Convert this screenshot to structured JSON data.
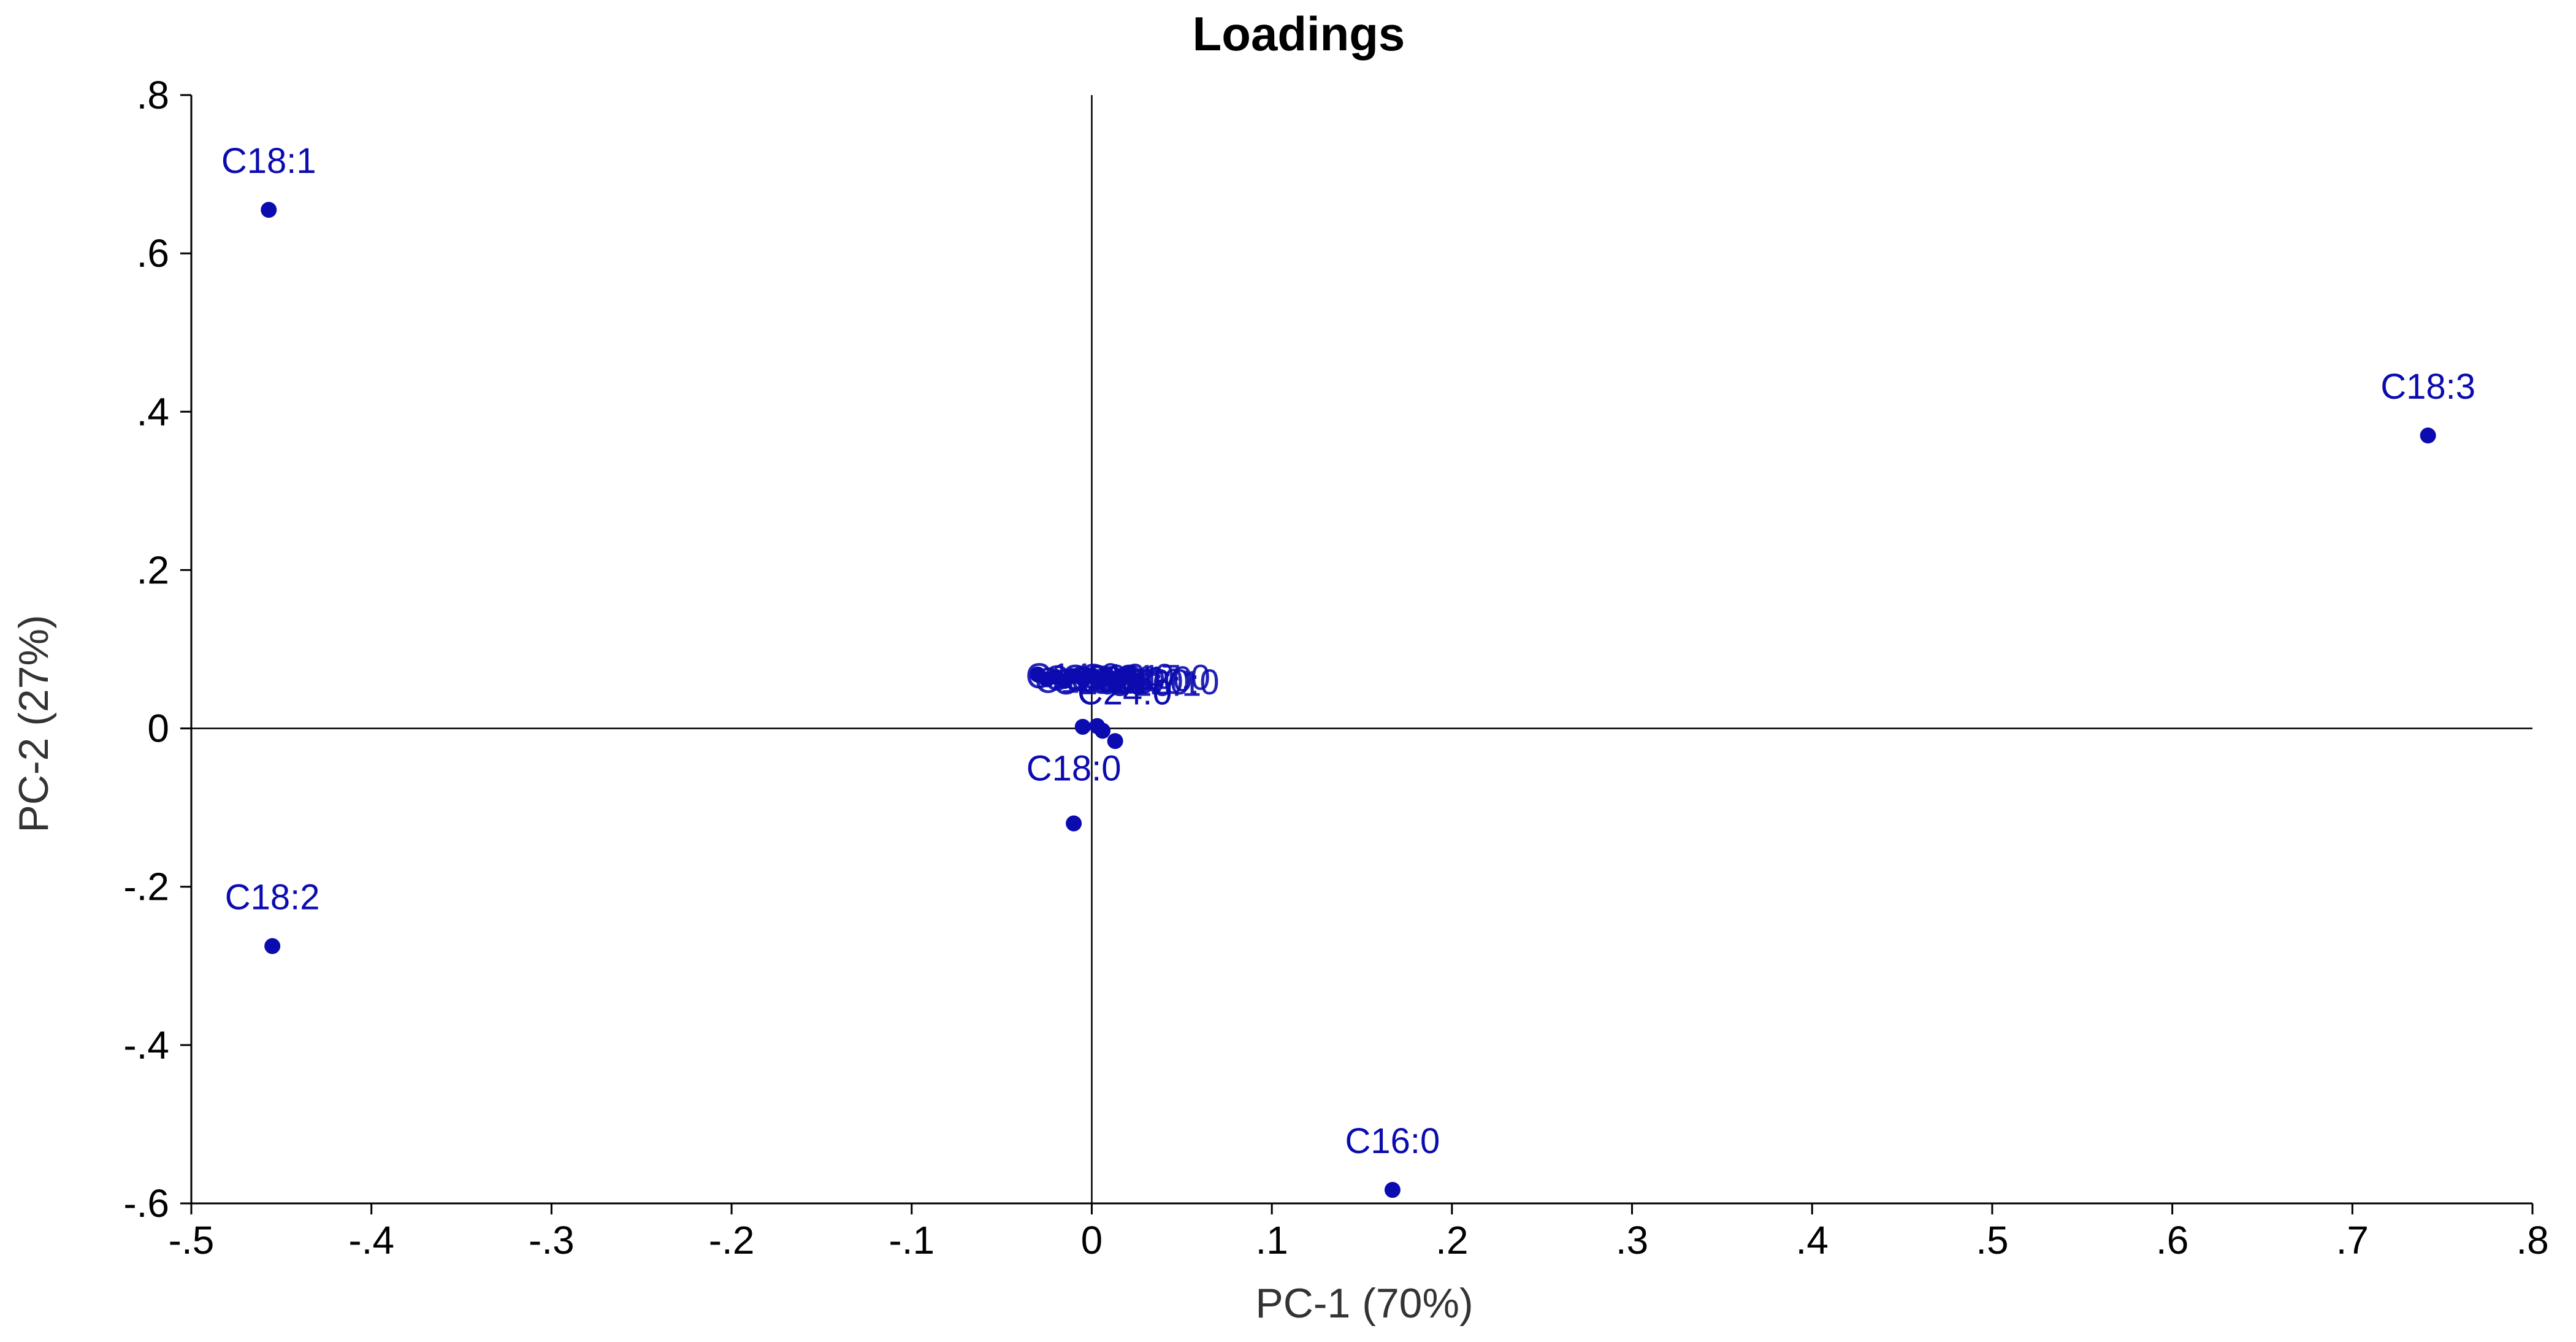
{
  "chart_data": {
    "type": "scatter",
    "title": "Loadings",
    "xlabel": "PC-1 (70%)",
    "ylabel": "PC-2 (27%)",
    "xlim": [
      -0.5,
      0.8
    ],
    "ylim": [
      -0.6,
      0.8
    ],
    "xticks": [
      -0.5,
      -0.4,
      -0.3,
      -0.2,
      -0.1,
      0,
      0.1,
      0.2,
      0.3,
      0.4,
      0.5,
      0.6,
      0.7,
      0.8
    ],
    "yticks": [
      -0.6,
      -0.4,
      -0.2,
      0,
      0.2,
      0.4,
      0.6,
      0.8
    ],
    "reference_lines": {
      "x": 0,
      "y": 0
    },
    "grid": false,
    "color": "#0b0bb0",
    "points": [
      {
        "label": "C18:1",
        "x": -0.457,
        "y": 0.655
      },
      {
        "label": "C18:3",
        "x": 0.742,
        "y": 0.37
      },
      {
        "label": "C18:2",
        "x": -0.455,
        "y": -0.275
      },
      {
        "label": "C16:0",
        "x": 0.167,
        "y": -0.583
      },
      {
        "label": "C18:0",
        "x": -0.01,
        "y": -0.12
      },
      {
        "label": "C24:0",
        "x": 0.003,
        "y": 0.003
      },
      {
        "label": "",
        "x": 0.006,
        "y": -0.003
      },
      {
        "label": "",
        "x": 0.013,
        "y": -0.016
      },
      {
        "label": "",
        "x": -0.005,
        "y": 0.002
      },
      {
        "label": "",
        "x": -0.03,
        "y": 0.068
      },
      {
        "label": "",
        "x": -0.025,
        "y": 0.062
      },
      {
        "label": "",
        "x": -0.02,
        "y": 0.065
      },
      {
        "label": "",
        "x": -0.015,
        "y": 0.06
      },
      {
        "label": "",
        "x": -0.01,
        "y": 0.066
      },
      {
        "label": "",
        "x": -0.005,
        "y": 0.063
      },
      {
        "label": "",
        "x": 0,
        "y": 0.067
      },
      {
        "label": "",
        "x": 0.005,
        "y": 0.061
      },
      {
        "label": "",
        "x": 0.01,
        "y": 0.064
      },
      {
        "label": "",
        "x": 0.015,
        "y": 0.058
      },
      {
        "label": "",
        "x": 0.02,
        "y": 0.066
      },
      {
        "label": "",
        "x": 0.025,
        "y": 0.06
      }
    ]
  }
}
